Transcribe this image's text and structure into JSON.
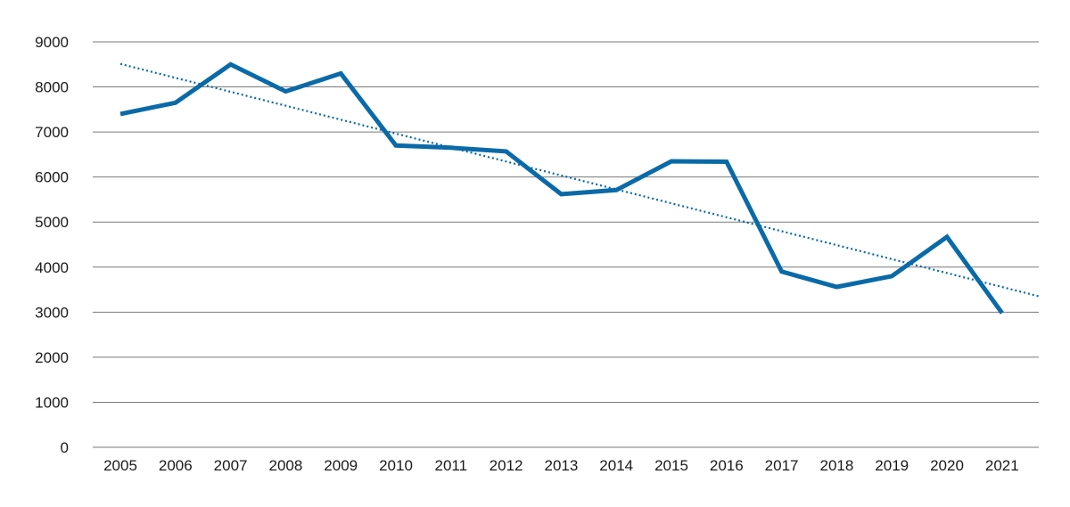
{
  "chart_data": {
    "type": "line",
    "title": "",
    "xlabel": "",
    "ylabel": "",
    "categories": [
      "2005",
      "2006",
      "2007",
      "2008",
      "2009",
      "2010",
      "2011",
      "2012",
      "2013",
      "2014",
      "2015",
      "2016",
      "2017",
      "2018",
      "2019",
      "2020",
      "2021"
    ],
    "series": [
      {
        "values": [
          7400,
          7650,
          8500,
          7900,
          8300,
          6700,
          6650,
          6570,
          5620,
          5710,
          6350,
          6340,
          3900,
          3560,
          3800,
          4670,
          2980
        ],
        "color": "#0a6aa8"
      }
    ],
    "trendline": {
      "style": "dotted",
      "color": "#0a6aa8",
      "type": "linear"
    },
    "ylim": [
      0,
      9000
    ],
    "yticks": [
      0,
      1000,
      2000,
      3000,
      4000,
      5000,
      6000,
      7000,
      8000,
      9000
    ],
    "grid": true,
    "legend": "none"
  }
}
